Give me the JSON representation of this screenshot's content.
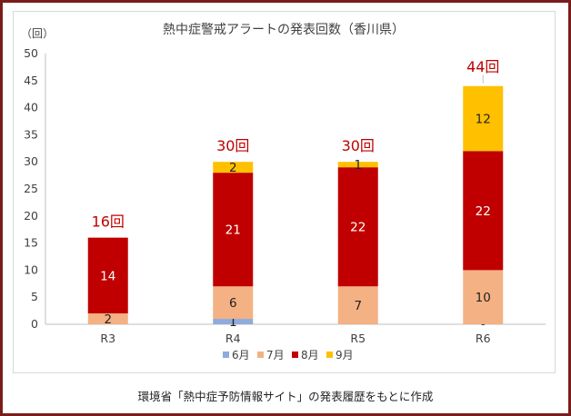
{
  "chart_data": {
    "type": "bar",
    "stacked": true,
    "title": "熱中症警戒アラートの発表回数（香川県）",
    "ylabel": "（回）",
    "xlabel": "",
    "ylim": [
      0,
      50
    ],
    "yticks": [
      0,
      5,
      10,
      15,
      20,
      25,
      30,
      35,
      40,
      45,
      50
    ],
    "categories": [
      "R3",
      "R4",
      "R5",
      "R6"
    ],
    "series": [
      {
        "name": "6月",
        "color": "#8faadc",
        "values": [
          0,
          1,
          0,
          0
        ],
        "labels": [
          "",
          "1",
          "",
          "0"
        ]
      },
      {
        "name": "7月",
        "color": "#f4b183",
        "values": [
          2,
          6,
          7,
          10
        ],
        "labels": [
          "2",
          "6",
          "7",
          "10"
        ]
      },
      {
        "name": "8月",
        "color": "#c00000",
        "values": [
          14,
          21,
          22,
          22
        ],
        "labels": [
          "14",
          "21",
          "22",
          "22"
        ]
      },
      {
        "name": "9月",
        "color": "#ffc000",
        "values": [
          0,
          2,
          1,
          12
        ],
        "labels": [
          "",
          "2",
          "1",
          "12"
        ]
      }
    ],
    "totals": [
      "16回",
      "30回",
      "30回",
      "44回"
    ],
    "grid": false,
    "legend_position": "bottom"
  },
  "source_note": "環境省「熱中症予防情報サイト」の発表履歴をもとに作成",
  "colors": {
    "frame": "#7b1c1c",
    "total_label": "#c00000",
    "axis": "#bfbfbf",
    "text": "#404040"
  }
}
